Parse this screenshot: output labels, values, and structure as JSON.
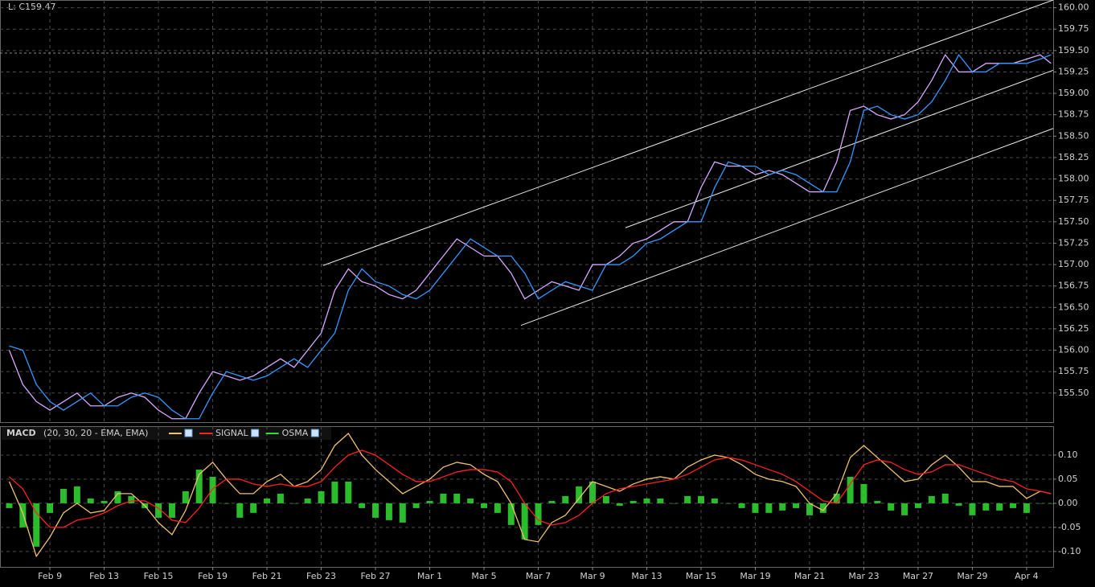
{
  "chart_data": [
    {
      "type": "line",
      "last_label": "L: C159.47",
      "last_value": 159.47,
      "xlim": [
        -1.84,
        36.98
      ],
      "ylim": [
        155.16,
        160.09
      ],
      "yticks": [
        {
          "value": 155.5,
          "label": "155.50"
        },
        {
          "value": 155.75,
          "label": "155.75"
        },
        {
          "value": 156,
          "label": "156.00"
        },
        {
          "value": 156.25,
          "label": "156.25"
        },
        {
          "value": 156.5,
          "label": "156.50"
        },
        {
          "value": 156.75,
          "label": "156.75"
        },
        {
          "value": 157,
          "label": "157.00"
        },
        {
          "value": 157.25,
          "label": "157.25"
        },
        {
          "value": 157.5,
          "label": "157.50"
        },
        {
          "value": 157.75,
          "label": "157.75"
        },
        {
          "value": 158,
          "label": "158.00"
        },
        {
          "value": 158.25,
          "label": "158.25"
        },
        {
          "value": 158.5,
          "label": "158.50"
        },
        {
          "value": 158.75,
          "label": "158.75"
        },
        {
          "value": 159,
          "label": "159.00"
        },
        {
          "value": 159.25,
          "label": "159.25"
        },
        {
          "value": 159.5,
          "label": "159.50"
        },
        {
          "value": 159.75,
          "label": "159.75"
        },
        {
          "value": 160,
          "label": "160.00"
        }
      ],
      "grid": true,
      "x": [
        -1.5,
        -1,
        -0.5,
        0,
        0.5,
        1,
        1.5,
        2,
        2.5,
        3,
        3.5,
        4,
        4.5,
        5,
        5.5,
        6,
        6.5,
        7,
        7.5,
        8,
        8.5,
        9,
        9.5,
        10,
        10.5,
        11,
        11.5,
        12,
        12.5,
        13,
        13.5,
        14,
        14.5,
        15,
        15.5,
        16,
        16.5,
        17,
        17.5,
        18,
        18.5,
        19,
        19.5,
        20,
        20.5,
        21,
        21.5,
        22,
        22.5,
        23,
        23.5,
        24,
        24.5,
        25,
        25.5,
        26,
        26.5,
        27,
        27.5,
        28,
        28.5,
        29,
        29.5,
        30,
        30.5,
        31,
        31.5,
        32,
        32.5,
        33,
        33.5,
        34,
        34.5,
        35,
        35.5,
        36,
        36.5,
        36.9
      ],
      "series": [
        {
          "color": "#d8a8ff",
          "values": [
            156.0,
            155.6,
            155.4,
            155.3,
            155.4,
            155.5,
            155.35,
            155.35,
            155.45,
            155.5,
            155.45,
            155.3,
            155.2,
            155.2,
            155.5,
            155.75,
            155.7,
            155.65,
            155.7,
            155.8,
            155.9,
            155.8,
            156.0,
            156.2,
            156.7,
            156.95,
            156.8,
            156.75,
            156.65,
            156.6,
            156.7,
            156.9,
            157.1,
            157.3,
            157.2,
            157.1,
            157.1,
            156.9,
            156.6,
            156.7,
            156.8,
            156.75,
            156.7,
            157.0,
            157.0,
            157.1,
            157.25,
            157.3,
            157.4,
            157.5,
            157.5,
            157.9,
            158.2,
            158.15,
            158.15,
            158.05,
            158.1,
            158.05,
            157.95,
            157.85,
            157.85,
            158.2,
            158.8,
            158.85,
            158.75,
            158.7,
            158.75,
            158.9,
            159.15,
            159.45,
            159.25,
            159.25,
            159.35,
            159.35,
            159.35,
            159.4,
            159.45,
            159.35
          ]
        },
        {
          "color": "#3399ff",
          "values": [
            156.05,
            156.0,
            155.6,
            155.4,
            155.3,
            155.4,
            155.5,
            155.35,
            155.35,
            155.45,
            155.5,
            155.45,
            155.3,
            155.2,
            155.2,
            155.5,
            155.75,
            155.7,
            155.65,
            155.7,
            155.8,
            155.9,
            155.8,
            156.0,
            156.2,
            156.7,
            156.95,
            156.8,
            156.75,
            156.65,
            156.6,
            156.7,
            156.9,
            157.1,
            157.3,
            157.2,
            157.1,
            157.1,
            156.9,
            156.6,
            156.7,
            156.8,
            156.75,
            156.7,
            157.0,
            157.0,
            157.1,
            157.25,
            157.3,
            157.4,
            157.5,
            157.5,
            157.9,
            158.2,
            158.15,
            158.15,
            158.05,
            158.1,
            158.05,
            157.95,
            157.85,
            157.85,
            158.2,
            158.8,
            158.85,
            158.75,
            158.7,
            158.75,
            158.9,
            159.15,
            159.45,
            159.25,
            159.25,
            159.35,
            159.35,
            159.35,
            159.4,
            159.45
          ]
        }
      ],
      "trendlines": [
        {
          "x": [
            10.07,
            36.98
          ],
          "y": [
            156.99,
            160.09
          ]
        },
        {
          "x": [
            21.21,
            36.98
          ],
          "y": [
            157.43,
            159.27
          ]
        },
        {
          "x": [
            17.36,
            36.98
          ],
          "y": [
            156.29,
            158.59
          ]
        }
      ]
    },
    {
      "type": "line",
      "title": "MACD",
      "subtitle": "(20, 30, 20 - EMA, EMA)",
      "xlim": [
        -1.84,
        36.98
      ],
      "ylim": [
        -0.132,
        0.16
      ],
      "yticks": [
        {
          "value": -0.1,
          "label": "-0.10"
        },
        {
          "value": -0.05,
          "label": "-0.05"
        },
        {
          "value": 0,
          "label": "0.00"
        },
        {
          "value": 0.05,
          "label": "0.05"
        },
        {
          "value": 0.1,
          "label": "0.10"
        }
      ],
      "xticks": [
        {
          "value": 0,
          "label": "Feb 9"
        },
        {
          "value": 2,
          "label": "Feb 13"
        },
        {
          "value": 4,
          "label": "Feb 15"
        },
        {
          "value": 6,
          "label": "Feb 19"
        },
        {
          "value": 8,
          "label": "Feb 21"
        },
        {
          "value": 10,
          "label": "Feb 23"
        },
        {
          "value": 12,
          "label": "Feb 27"
        },
        {
          "value": 14,
          "label": "Mar 1"
        },
        {
          "value": 16,
          "label": "Mar 5"
        },
        {
          "value": 18,
          "label": "Mar 7"
        },
        {
          "value": 20,
          "label": "Mar 9"
        },
        {
          "value": 22,
          "label": "Mar 13"
        },
        {
          "value": 24,
          "label": "Mar 15"
        },
        {
          "value": 26,
          "label": "Mar 19"
        },
        {
          "value": 28,
          "label": "Mar 21"
        },
        {
          "value": 30,
          "label": "Mar 23"
        },
        {
          "value": 32,
          "label": "Mar 27"
        },
        {
          "value": 34,
          "label": "Mar 29"
        },
        {
          "value": 36,
          "label": "Apr 4"
        }
      ],
      "grid": true,
      "x": [
        -1.5,
        -1,
        -0.5,
        0,
        0.5,
        1,
        1.5,
        2,
        2.5,
        3,
        3.5,
        4,
        4.5,
        5,
        5.5,
        6,
        6.5,
        7,
        7.5,
        8,
        8.5,
        9,
        9.5,
        10,
        10.5,
        11,
        11.5,
        12,
        12.5,
        13,
        13.5,
        14,
        14.5,
        15,
        15.5,
        16,
        16.5,
        17,
        17.5,
        18,
        18.5,
        19,
        19.5,
        20,
        20.5,
        21,
        21.5,
        22,
        22.5,
        23,
        23.5,
        24,
        24.5,
        25,
        25.5,
        26,
        26.5,
        27,
        27.5,
        28,
        28.5,
        29,
        29.5,
        30,
        30.5,
        31,
        31.5,
        32,
        32.5,
        33,
        33.5,
        34,
        34.5,
        35,
        35.5,
        36,
        36.5,
        36.9
      ],
      "series": [
        {
          "color": "#f0c070",
          "values": [
            0.045,
            -0.02,
            -0.11,
            -0.07,
            -0.02,
            0.0,
            -0.02,
            -0.015,
            0.02,
            0.02,
            -0.005,
            -0.04,
            -0.065,
            -0.015,
            0.06,
            0.085,
            0.05,
            0.02,
            0.02,
            0.045,
            0.06,
            0.035,
            0.045,
            0.07,
            0.12,
            0.145,
            0.1,
            0.07,
            0.045,
            0.02,
            0.035,
            0.05,
            0.075,
            0.085,
            0.08,
            0.06,
            0.045,
            0.0,
            -0.075,
            -0.08,
            -0.04,
            -0.025,
            0.01,
            0.045,
            0.035,
            0.025,
            0.04,
            0.05,
            0.055,
            0.05,
            0.075,
            0.09,
            0.1,
            0.095,
            0.08,
            0.06,
            0.05,
            0.045,
            0.035,
            0.0,
            -0.015,
            0.02,
            0.095,
            0.12,
            0.095,
            0.07,
            0.045,
            0.05,
            0.08,
            0.1,
            0.075,
            0.045,
            0.045,
            0.035,
            0.035,
            0.01,
            0.025,
            0.02
          ]
        },
        {
          "name": "SIGNAL",
          "color": "#ff2020",
          "values": [
            0.055,
            0.03,
            -0.02,
            -0.05,
            -0.05,
            -0.035,
            -0.03,
            -0.02,
            -0.005,
            0.005,
            0.005,
            -0.01,
            -0.035,
            -0.04,
            -0.01,
            0.03,
            0.05,
            0.05,
            0.04,
            0.035,
            0.04,
            0.035,
            0.035,
            0.045,
            0.075,
            0.1,
            0.11,
            0.1,
            0.08,
            0.06,
            0.045,
            0.045,
            0.055,
            0.065,
            0.07,
            0.07,
            0.065,
            0.045,
            0.0,
            -0.035,
            -0.045,
            -0.04,
            -0.025,
            0.0,
            0.02,
            0.03,
            0.035,
            0.04,
            0.045,
            0.05,
            0.06,
            0.075,
            0.09,
            0.095,
            0.09,
            0.08,
            0.07,
            0.06,
            0.045,
            0.025,
            0.005,
            0.0,
            0.04,
            0.08,
            0.09,
            0.085,
            0.07,
            0.06,
            0.065,
            0.08,
            0.08,
            0.07,
            0.06,
            0.05,
            0.045,
            0.03,
            0.025,
            0.02
          ]
        },
        {
          "name": "OSMA",
          "color": "#33dd33",
          "type": "bar",
          "values": [
            -0.01,
            -0.05,
            -0.09,
            -0.02,
            0.03,
            0.035,
            0.01,
            0.005,
            0.025,
            0.015,
            -0.01,
            -0.03,
            -0.03,
            0.025,
            0.07,
            0.055,
            0.0,
            -0.03,
            -0.02,
            0.01,
            0.02,
            0.0,
            0.01,
            0.025,
            0.045,
            0.045,
            -0.01,
            -0.03,
            -0.035,
            -0.04,
            -0.01,
            0.005,
            0.02,
            0.02,
            0.01,
            -0.01,
            -0.02,
            -0.045,
            -0.075,
            -0.045,
            0.005,
            0.015,
            0.035,
            0.045,
            0.015,
            -0.005,
            0.005,
            0.01,
            0.01,
            0.0,
            0.015,
            0.015,
            0.01,
            0.0,
            -0.01,
            -0.02,
            -0.02,
            -0.015,
            -0.01,
            -0.025,
            -0.02,
            0.02,
            0.055,
            0.04,
            0.005,
            -0.015,
            -0.025,
            -0.01,
            0.015,
            0.02,
            -0.005,
            -0.025,
            -0.015,
            -0.015,
            -0.01,
            -0.02,
            0.0,
            0.0
          ]
        }
      ]
    }
  ]
}
